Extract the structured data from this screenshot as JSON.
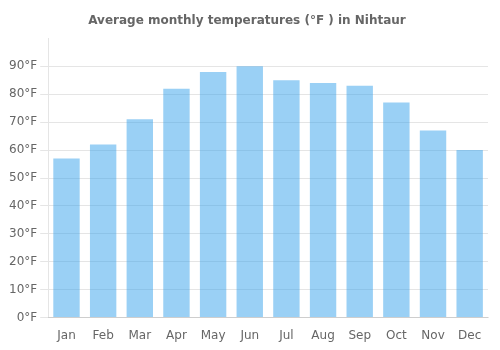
{
  "chart_data": {
    "type": "bar",
    "title": "Average monthly temperatures (°F ) in Nihtaur",
    "categories": [
      "Jan",
      "Feb",
      "Mar",
      "Apr",
      "May",
      "Jun",
      "Jul",
      "Aug",
      "Sep",
      "Oct",
      "Nov",
      "Dec"
    ],
    "values": [
      57,
      62,
      71,
      82,
      88,
      90,
      85,
      84,
      83,
      77,
      67,
      60
    ],
    "ylim": [
      0,
      100
    ],
    "yticks": [
      {
        "value": 0,
        "label": "0°F"
      },
      {
        "value": 10,
        "label": "10°F"
      },
      {
        "value": 20,
        "label": "20°F"
      },
      {
        "value": 30,
        "label": "30°F"
      },
      {
        "value": 40,
        "label": "40°F"
      },
      {
        "value": 50,
        "label": "50°F"
      },
      {
        "value": 60,
        "label": "60°F"
      },
      {
        "value": 70,
        "label": "70°F"
      },
      {
        "value": 80,
        "label": "80°F"
      },
      {
        "value": 90,
        "label": "90°F"
      }
    ],
    "grid": true
  }
}
